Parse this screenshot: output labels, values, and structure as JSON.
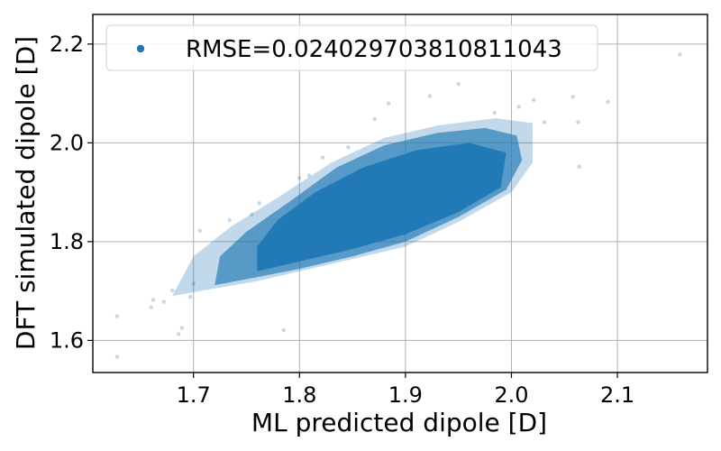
{
  "chart_data": {
    "type": "scatter",
    "xlabel": "ML predicted dipole [D]",
    "ylabel": "DFT simulated dipole [D]",
    "xlim": [
      1.605,
      2.185
    ],
    "ylim": [
      1.535,
      2.26
    ],
    "xticks": [
      "1.7",
      "1.8",
      "1.9",
      "2.0",
      "2.1"
    ],
    "yticks": [
      "1.6",
      "1.8",
      "2.0",
      "2.2"
    ],
    "grid": true,
    "legend": {
      "placement": "top-left",
      "entries": [
        {
          "label": "RMSE=0.024029703810811043",
          "color": "#1f77b4"
        }
      ]
    },
    "series": [
      {
        "color": "#1f77b4",
        "marker": "circle",
        "alpha": 0.28,
        "points": [
          [
            1.628,
            1.567
          ],
          [
            1.628,
            1.649
          ],
          [
            1.66,
            1.667
          ],
          [
            1.662,
            1.682
          ],
          [
            1.672,
            1.678
          ],
          [
            1.68,
            1.701
          ],
          [
            1.686,
            1.613
          ],
          [
            1.689,
            1.625
          ],
          [
            1.697,
            1.688
          ],
          [
            1.7,
            1.715
          ],
          [
            1.706,
            1.822
          ],
          [
            1.734,
            1.844
          ],
          [
            1.755,
            1.855
          ],
          [
            1.762,
            1.878
          ],
          [
            1.785,
            1.621
          ],
          [
            1.8,
            1.929
          ],
          [
            1.809,
            1.934
          ],
          [
            1.822,
            1.97
          ],
          [
            1.846,
            1.991
          ],
          [
            1.871,
            2.048
          ],
          [
            1.884,
            2.08
          ],
          [
            1.923,
            2.095
          ],
          [
            1.95,
            2.119
          ],
          [
            1.984,
            2.061
          ],
          [
            2.007,
            2.073
          ],
          [
            2.021,
            2.087
          ],
          [
            2.031,
            2.042
          ],
          [
            2.058,
            2.093
          ],
          [
            2.063,
            2.042
          ],
          [
            2.064,
            1.952
          ],
          [
            2.091,
            2.083
          ],
          [
            2.159,
            2.179
          ]
        ]
      }
    ]
  }
}
